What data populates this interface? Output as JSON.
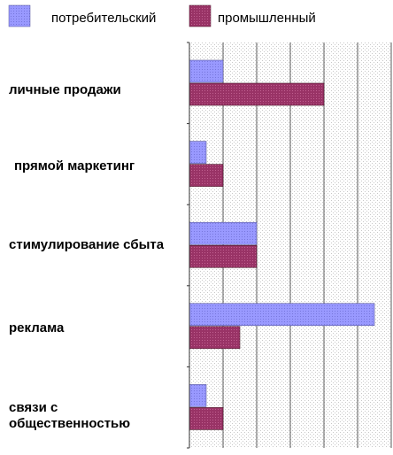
{
  "chart_data": {
    "type": "bar",
    "orientation": "horizontal",
    "categories": [
      "личные продажи",
      "прямой маркетинг",
      "стимулирование сбыта",
      "реклама",
      "связи с общественностью"
    ],
    "series": [
      {
        "name": "потребительский",
        "values": [
          1,
          0.5,
          2,
          5.5,
          0.5
        ],
        "color": "#9999ff"
      },
      {
        "name": "промышленный",
        "values": [
          4,
          1,
          2,
          1.5,
          1
        ],
        "color": "#993366"
      }
    ],
    "xlim": [
      0,
      6
    ],
    "grid": true,
    "legend_position": "top"
  }
}
